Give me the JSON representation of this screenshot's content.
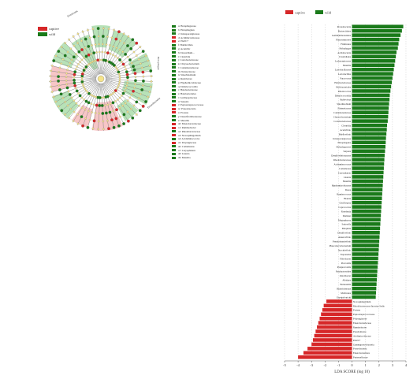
{
  "colors": {
    "captive": "#d62728",
    "wild": "#1a7a1a",
    "wild_light": "#9fd89f",
    "captive_light": "#f4b3b3"
  },
  "legend": {
    "captive": "captive",
    "wild": "wild"
  },
  "taxa_list": [
    {
      "group": "wild",
      "text": "a: Holophagaceae"
    },
    {
      "group": "wild",
      "text": "b: Holophagales"
    },
    {
      "group": "wild",
      "text": "c: Intrasporangiaceae"
    },
    {
      "group": "captive",
      "text": "d: Acidimicrobiaceae"
    },
    {
      "group": "captive",
      "text": "e: PAUC7"
    },
    {
      "group": "wild",
      "text": "f: Bdellovibrio"
    },
    {
      "group": "wild",
      "text": "g: Acetivibr"
    },
    {
      "group": "wild",
      "text": "h: Dorea/Rum..."
    },
    {
      "group": "wild",
      "text": "i: Clostridia"
    },
    {
      "group": "wild",
      "text": "j: Coriobacteriaceae"
    },
    {
      "group": "wild",
      "text": "k: Chryseobacterium"
    },
    {
      "group": "wild",
      "text": "l: Comamonadaceae"
    },
    {
      "group": "wild",
      "text": "m: Neisseriaceae"
    },
    {
      "group": "wild",
      "text": "n: Sinorhizobium"
    },
    {
      "group": "wild",
      "text": "o: Rubrivivax"
    },
    {
      "group": "wild",
      "text": "p: Hyphomicrobiaceae"
    },
    {
      "group": "wild",
      "text": "q: Dehalococcoidia"
    },
    {
      "group": "wild",
      "text": "r: Halobacteriaceae"
    },
    {
      "group": "wild",
      "text": "s: Halobacteriales"
    },
    {
      "group": "wild",
      "text": "t: Lachnospiraceae"
    },
    {
      "group": "wild",
      "text": "u: Serpens"
    },
    {
      "group": "captive",
      "text": "v: Peptostreptococcaceae"
    },
    {
      "group": "captive",
      "text": "w: Proteobacteria"
    },
    {
      "group": "captive",
      "text": "x: Proteus"
    },
    {
      "group": "wild",
      "text": "y: Desulfovibrionaceae"
    },
    {
      "group": "wild",
      "text": "z: Massilia"
    },
    {
      "group": "captive",
      "text": "a0: Enterobacteriaceae"
    },
    {
      "group": "captive",
      "text": "a1: Ruminobacter"
    },
    {
      "group": "wild",
      "text": "a2: Rhodobacteraceae"
    },
    {
      "group": "captive",
      "text": "a3: Novosphingobium"
    },
    {
      "group": "wild",
      "text": "a4: Acidaminococcus"
    },
    {
      "group": "captive",
      "text": "a5: Polyangiaceae"
    },
    {
      "group": "wild",
      "text": "a6: Comamonas"
    },
    {
      "group": "wild",
      "text": "a7: Caryophanon"
    },
    {
      "group": "wild",
      "text": "a8: Listeria"
    },
    {
      "group": "wild",
      "text": "a9: Massilia"
    }
  ],
  "cladogram": {
    "clade_labels": [
      "Holophagae",
      "Proteobacteria",
      "Firmicutes"
    ]
  },
  "chart_data": {
    "type": "bar",
    "orientation": "horizontal",
    "xlabel": "LDA SCORE (log 10)",
    "xlim": [
      -5,
      4
    ],
    "xticks": [
      -5,
      -4,
      -3,
      -2,
      -1,
      0,
      1,
      2,
      3,
      4
    ],
    "grid": true,
    "legend": {
      "position": "top",
      "entries": [
        "captive",
        "wild"
      ]
    },
    "series": [
      {
        "name": "wild",
        "categories": [
          "Proteobacteria",
          "Bacteroidetes",
          "Gemmatimonadetes",
          "Planctomycetes",
          "Firmicutes",
          "Holophagae",
          "Acidobacteria",
          "Clostridiales",
          "Lachnospiraceae",
          "Massilia",
          "Lactobacillaceae",
          "Lactobacillus",
          "Paracoccus",
          "Halobacteriaceae",
          "Halobacteriales",
          "Rhodococcus",
          "Dehalococcoidia",
          "Rubrivivax",
          "Sinorhizobium",
          "Neisseriaceae",
          "Comamonadaceae",
          "Chryseobacterium",
          "Coriobacteriaceae",
          "Clostridia",
          "Acetivibrio",
          "Bdellovibrio",
          "Intrasporangiaceae",
          "Holophagales",
          "Holophagaceae",
          "Serpens",
          "Desulfovibrionaceae",
          "Rhodobacteraceae",
          "Acidaminococcus",
          "Comamonas",
          "Caryophanon",
          "Listeria",
          "Massilia",
          "Hyphomicrobiaceae",
          "Dorea",
          "Ruminococcus",
          "Blautia",
          "Oscillospira",
          "Coprococcus",
          "Roseburia",
          "Dialister",
          "Megasphaera",
          "Sutterella",
          "Bilophila",
          "Desulfovibrio",
          "Anaerovibrio",
          "Pseudobutyrivibrio",
          "Phascolarctobacterium",
          "Succinivibrio",
          "Treponema",
          "Fibrobacter",
          "Prevotella",
          "Paraprevotella",
          "Parabacteroides",
          "Odoribacter",
          "Alistipes",
          "Barnesiella",
          "Butyricimonas",
          "Mollicutes",
          "Erysipelotrichi"
        ],
        "values": [
          3.8,
          3.7,
          3.6,
          3.5,
          3.45,
          3.4,
          3.3,
          3.25,
          3.2,
          3.15,
          3.1,
          3.05,
          3.0,
          2.95,
          2.9,
          2.85,
          2.8,
          2.78,
          2.75,
          2.72,
          2.7,
          2.68,
          2.65,
          2.6,
          2.58,
          2.55,
          2.52,
          2.5,
          2.48,
          2.45,
          2.42,
          2.4,
          2.38,
          2.36,
          2.34,
          2.32,
          2.3,
          2.28,
          2.26,
          2.24,
          2.22,
          2.2,
          2.18,
          2.16,
          2.14,
          2.12,
          2.1,
          2.08,
          2.06,
          2.04,
          2.02,
          2.0,
          1.98,
          1.96,
          1.94,
          1.92,
          1.9,
          1.88,
          1.86,
          1.84,
          1.82,
          1.8,
          1.78,
          1.76
        ]
      },
      {
        "name": "captive",
        "categories": [
          "Novosphingobium",
          "Rhodobacteraceae Incertae Sedis",
          "Proteus",
          "Peptostreptococcaceae",
          "Polyangiaceae",
          "Enterobacteriaceae",
          "Ruminobacter",
          "Pseudomonas",
          "Acidimicrobiaceae",
          "PAUC7",
          "Gammaproteobacteria",
          "Proteobacteria",
          "Enterobacteriales",
          "Pasteurellaceae"
        ],
        "values": [
          -1.9,
          -2.1,
          -2.2,
          -2.3,
          -2.4,
          -2.5,
          -2.6,
          -2.7,
          -2.8,
          -2.9,
          -3.0,
          -3.3,
          -3.6,
          -4.0
        ]
      }
    ]
  }
}
